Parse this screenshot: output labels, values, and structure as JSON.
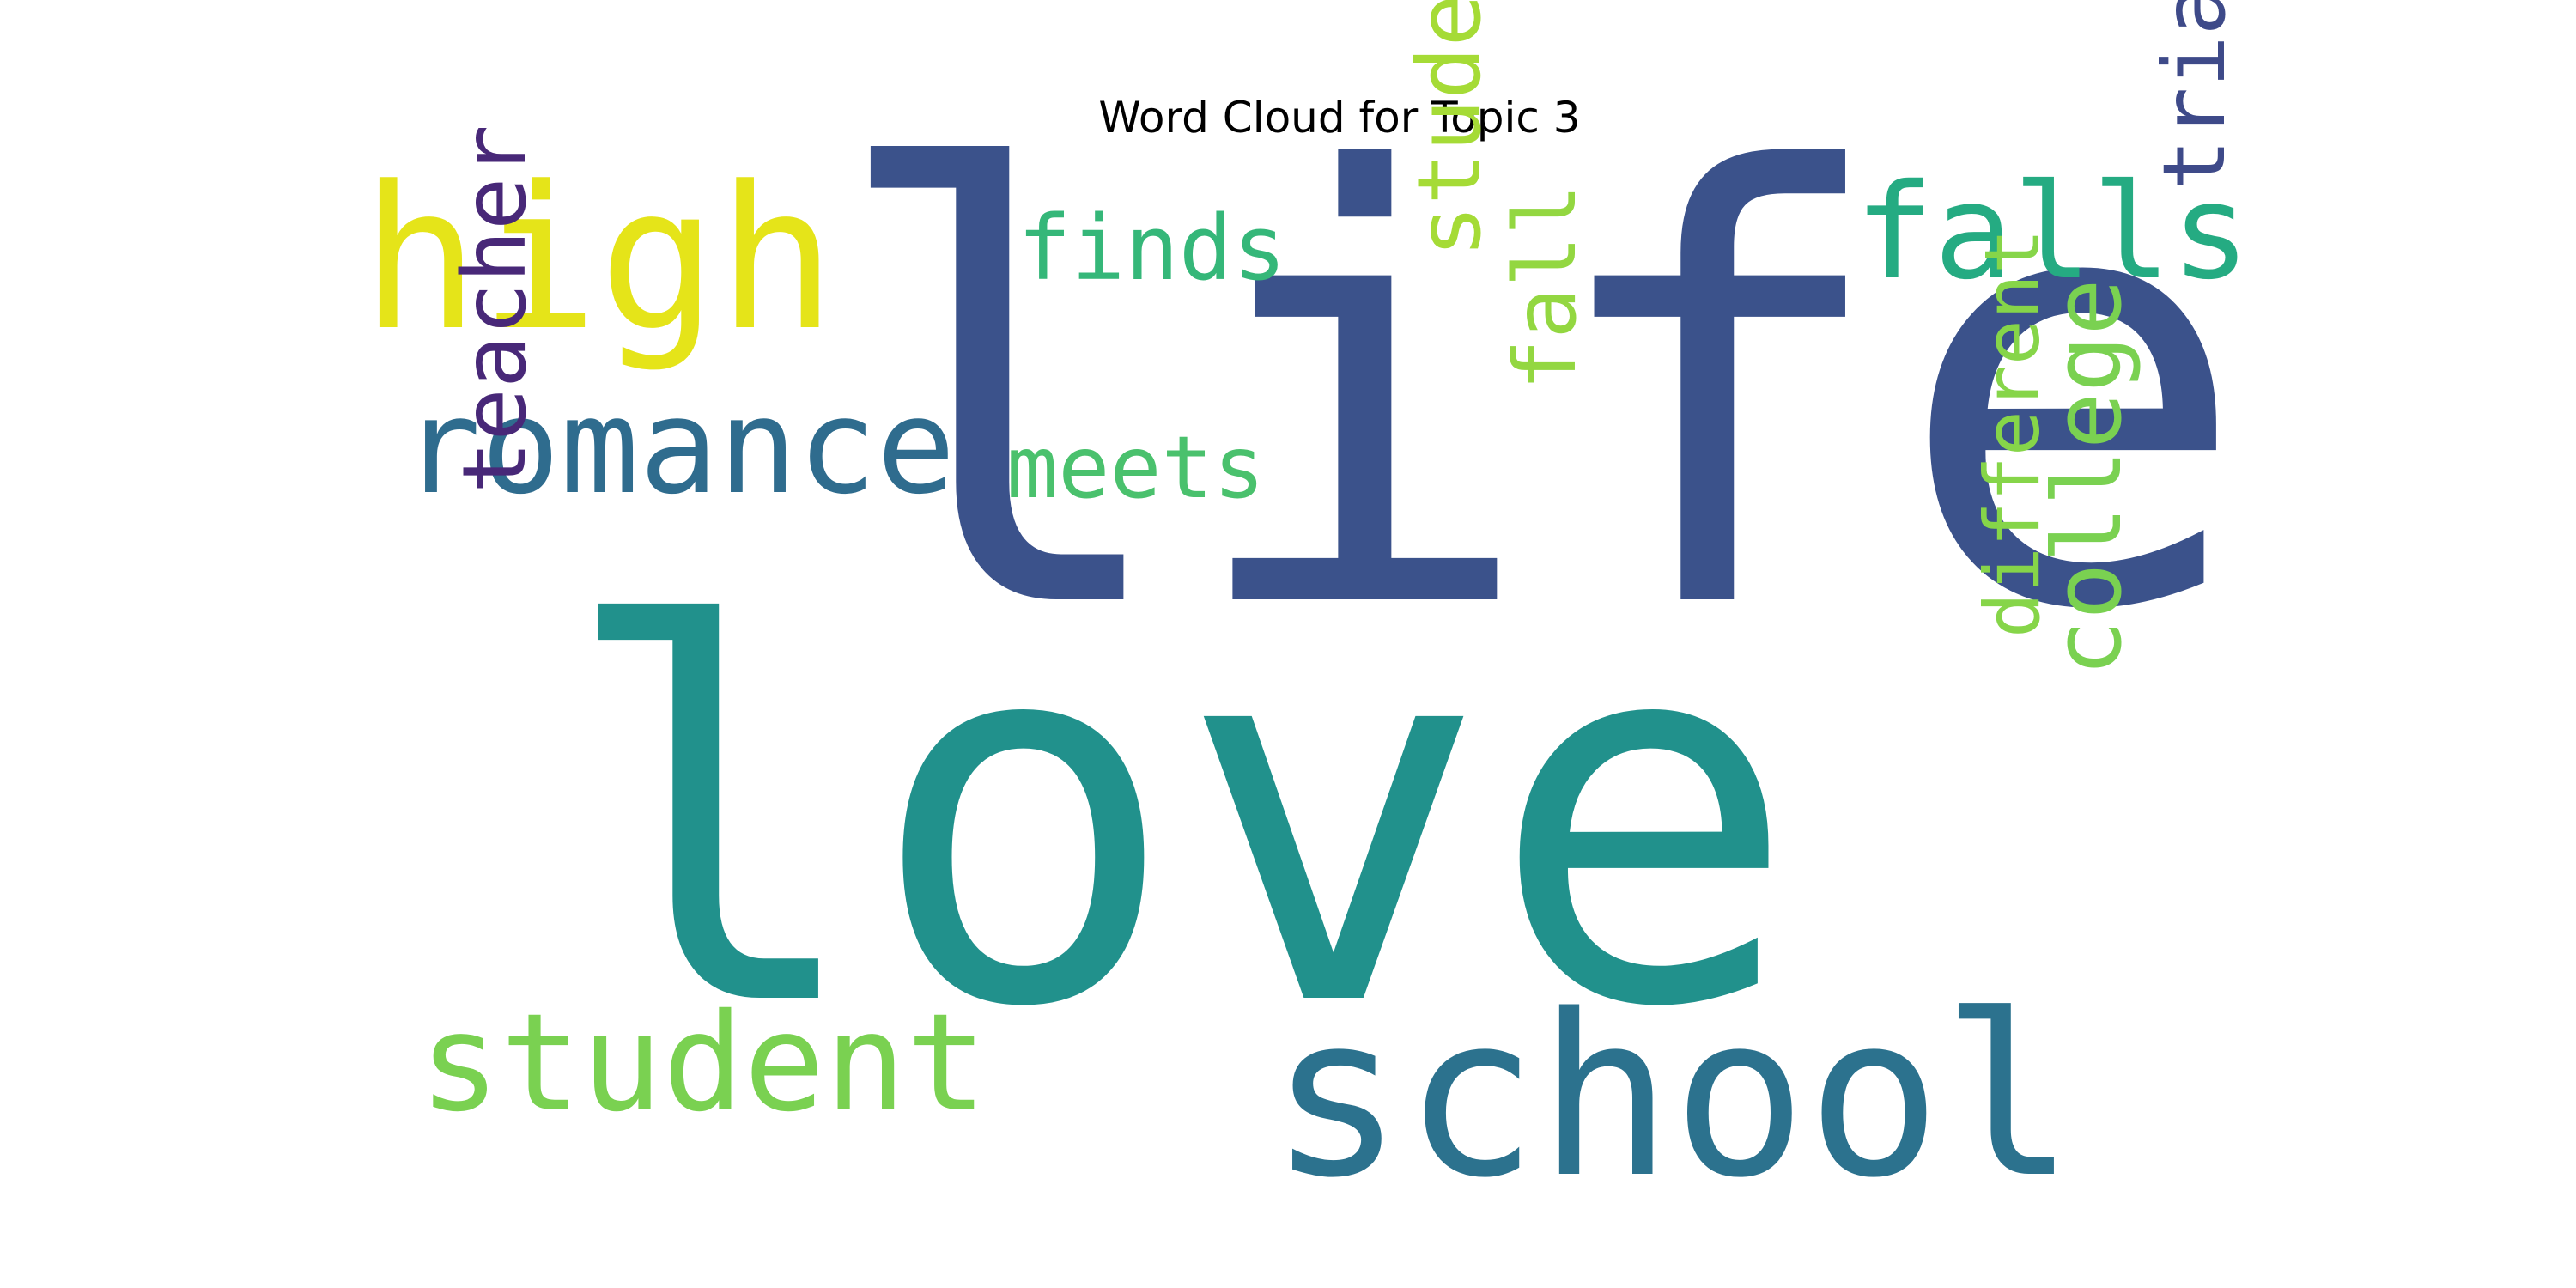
{
  "title": "Word Cloud for Topic 3",
  "words": [
    {
      "text": "love",
      "color": "#21918c",
      "orientation": "horizontal"
    },
    {
      "text": "life",
      "color": "#3b528b",
      "orientation": "horizontal"
    },
    {
      "text": "school",
      "color": "#2c728e",
      "orientation": "horizontal"
    },
    {
      "text": "high",
      "color": "#e5e419",
      "orientation": "horizontal"
    },
    {
      "text": "romance",
      "color": "#2f6c8e",
      "orientation": "horizontal"
    },
    {
      "text": "student",
      "color": "#7ad151",
      "orientation": "horizontal"
    },
    {
      "text": "falls",
      "color": "#25ab82",
      "orientation": "horizontal"
    },
    {
      "text": "finds",
      "color": "#35b779",
      "orientation": "horizontal"
    },
    {
      "text": "meets",
      "color": "#4ac16d",
      "orientation": "horizontal"
    },
    {
      "text": "teacher",
      "color": "#482878",
      "orientation": "vertical"
    },
    {
      "text": "students",
      "color": "#a5db36",
      "orientation": "vertical"
    },
    {
      "text": "fall",
      "color": "#93d741",
      "orientation": "vertical"
    },
    {
      "text": "triangle",
      "color": "#3e4a89",
      "orientation": "vertical"
    },
    {
      "text": "college",
      "color": "#7ad151",
      "orientation": "vertical"
    },
    {
      "text": "different",
      "color": "#86d549",
      "orientation": "vertical"
    }
  ]
}
